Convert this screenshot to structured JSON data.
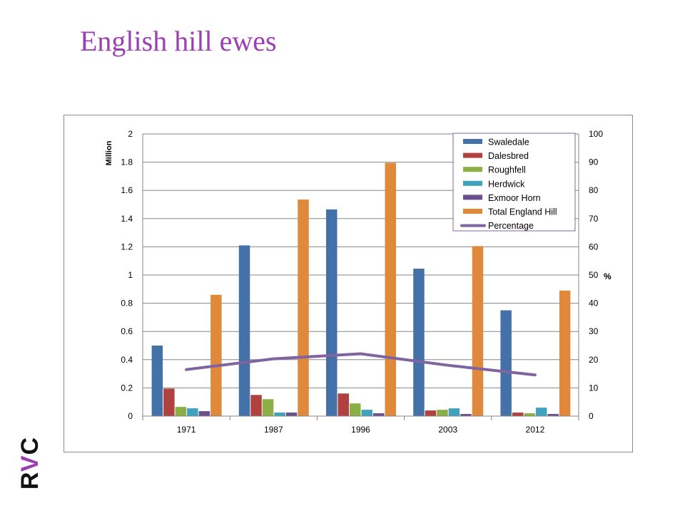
{
  "page": {
    "title": "English hill ewes"
  },
  "logo": {
    "text_r": "R",
    "text_v": "V",
    "text_c": "C"
  },
  "colors": {
    "title": "#9B3FB5",
    "Swaledale": "#4472A8",
    "Dalesbred": "#B0413E",
    "Roughfell": "#8CAF45",
    "Herdwick": "#3FA3C0",
    "Exmoor Horn": "#6A4E8E",
    "Total England Hill": "#E0893A",
    "Percentage": "#8064A2"
  },
  "chart_data": {
    "type": "bar",
    "categories": [
      "1971",
      "1987",
      "1996",
      "2003",
      "2012"
    ],
    "series": [
      {
        "name": "Swaledale",
        "values": [
          0.5,
          1.21,
          1.465,
          1.045,
          0.75
        ]
      },
      {
        "name": "Dalesbred",
        "values": [
          0.195,
          0.15,
          0.16,
          0.04,
          0.025
        ]
      },
      {
        "name": "Roughfell",
        "values": [
          0.065,
          0.12,
          0.09,
          0.045,
          0.02
        ]
      },
      {
        "name": "Herdwick",
        "values": [
          0.055,
          0.025,
          0.045,
          0.055,
          0.06
        ]
      },
      {
        "name": "Exmoor Horn",
        "values": [
          0.035,
          0.025,
          0.02,
          0.015,
          0.015
        ]
      },
      {
        "name": "Total England Hill",
        "values": [
          0.86,
          1.535,
          1.795,
          1.205,
          0.89
        ]
      }
    ],
    "line_series": {
      "name": "Percentage",
      "axis": "right",
      "values": [
        16.5,
        20.3,
        22.1,
        18.0,
        14.6
      ]
    },
    "ylabel": "Million",
    "ylabel_right": "%",
    "ylim": [
      0,
      2
    ],
    "ylim_right": [
      0,
      100
    ],
    "yticks": [
      "0",
      "0.2",
      "0.4",
      "0.6",
      "0.8",
      "1",
      "1.2",
      "1.4",
      "1.6",
      "1.8",
      "2"
    ],
    "yticks_right": [
      "0",
      "10",
      "20",
      "30",
      "40",
      "50",
      "60",
      "70",
      "80",
      "90",
      "100"
    ],
    "grid": true,
    "legend_position": "top-right"
  }
}
